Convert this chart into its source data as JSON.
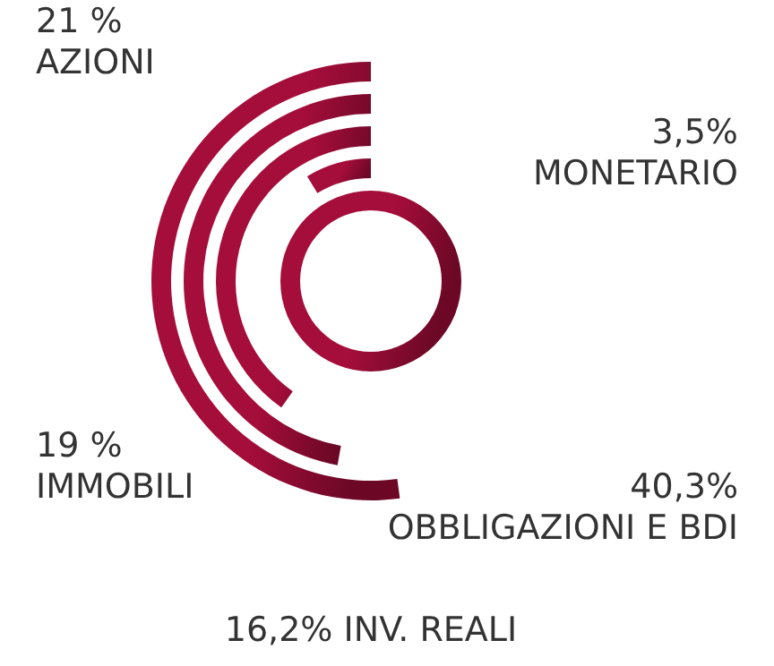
{
  "chart_data": {
    "type": "other",
    "categories": [
      "AZIONI",
      "IMMOBILI",
      "INV. REALI",
      "MONETARIO",
      "OBBLIGAZIONI E BDI"
    ],
    "values": [
      21,
      19,
      16.2,
      3.5,
      40.3
    ],
    "value_labels": [
      "21 %",
      "19 %",
      "16,2%",
      "3,5%",
      "40,3%"
    ],
    "color": "#a50d3a"
  }
}
